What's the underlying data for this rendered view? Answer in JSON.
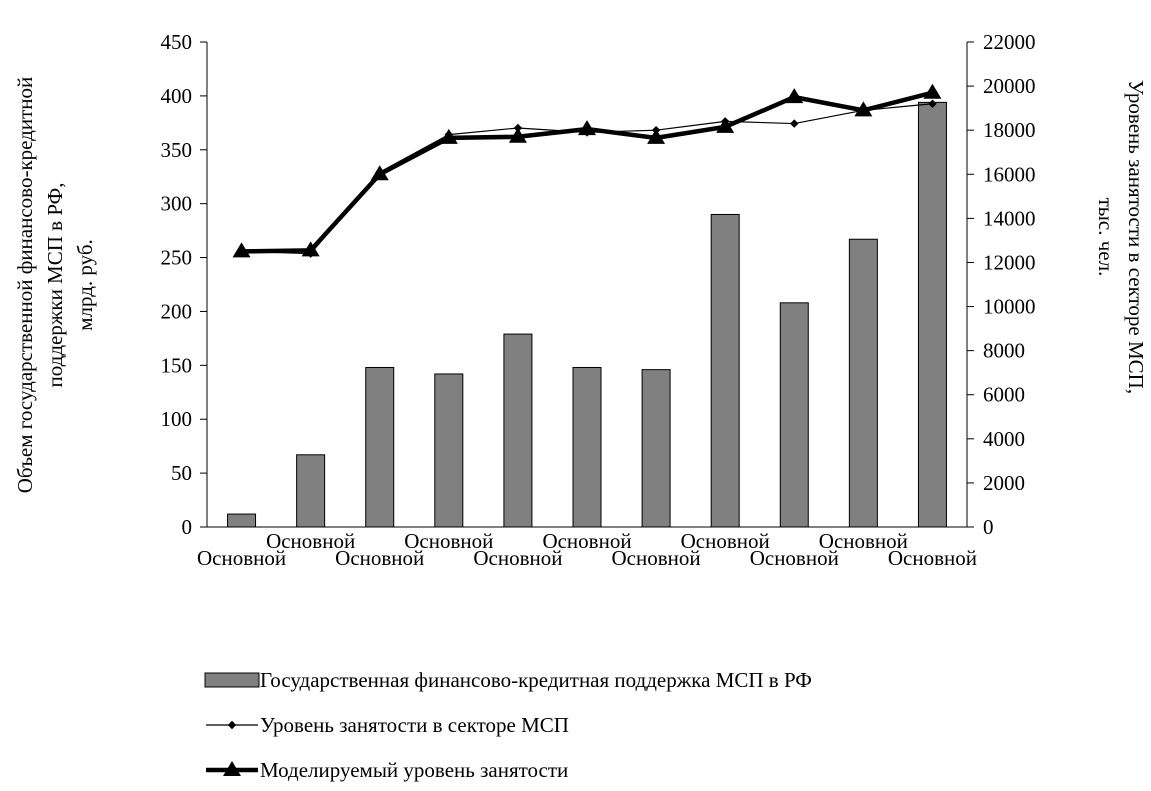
{
  "chart_data": {
    "type": "bar",
    "categories": [
      "Основной",
      "Основной",
      "Основной",
      "Основной",
      "Основной",
      "Основной",
      "Основной",
      "Основной",
      "Основной",
      "Основной",
      "Основной"
    ],
    "ylabel": "Объем государственной финансово-кредитной поддержки МСП в РФ, млрд. руб.",
    "y2label": "Уровень занятости в секторе МСП, тыс. чел.",
    "ylim": [
      0,
      450
    ],
    "y2lim": [
      0,
      22000
    ],
    "yticks": [
      "0",
      "50",
      "100",
      "150",
      "200",
      "250",
      "300",
      "350",
      "400",
      "450"
    ],
    "y2ticks": [
      "0",
      "2000",
      "4000",
      "6000",
      "8000",
      "10000",
      "12000",
      "14000",
      "16000",
      "18000",
      "20000",
      "22000"
    ],
    "grid": false,
    "legend_position": "bottom",
    "series": [
      {
        "name": "Государственная финансово-кредитная поддержка МСП  в РФ",
        "type": "bar",
        "axis": "left",
        "color": "#808080",
        "values": [
          12,
          67,
          148,
          142,
          179,
          148,
          146,
          290,
          208,
          267,
          394
        ]
      },
      {
        "name": "Уровень занятости в секторе МСП",
        "type": "line",
        "axis": "right",
        "color": "#000000",
        "values": [
          12500,
          12400,
          16100,
          17800,
          18100,
          17900,
          18000,
          18400,
          18300,
          18900,
          19200
        ]
      },
      {
        "name": "Моделируемый уровень занятости",
        "type": "line",
        "axis": "right",
        "color": "#000000",
        "values": [
          12500,
          12550,
          16000,
          17650,
          17700,
          18050,
          17650,
          18150,
          19500,
          18900,
          19700
        ]
      }
    ]
  }
}
